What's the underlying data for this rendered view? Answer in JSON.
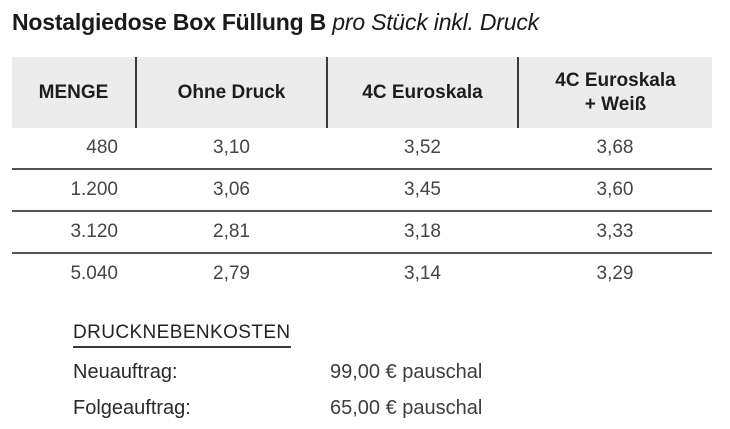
{
  "title": {
    "main": "Nostalgiedose Box Füllung B",
    "suffix": "pro Stück inkl. Druck"
  },
  "table": {
    "columns": [
      "MENGE",
      "Ohne Druck",
      "4C Euroskala",
      "4C Euroskala\n+ Weiß"
    ],
    "rows": [
      [
        "480",
        "3,10",
        "3,52",
        "3,68"
      ],
      [
        "1.200",
        "3,06",
        "3,45",
        "3,60"
      ],
      [
        "3.120",
        "2,81",
        "3,18",
        "3,33"
      ],
      [
        "5.040",
        "2,79",
        "3,14",
        "3,29"
      ]
    ]
  },
  "extras": {
    "heading": "DRUCKNEBENKOSTEN",
    "items": [
      {
        "label": "Neuauftrag:",
        "value": "99,00 € pauschal"
      },
      {
        "label": "Folgeauftrag:",
        "value": "65,00 € pauschal"
      }
    ]
  },
  "colors": {
    "header_background": "#ececec",
    "divider_line": "#3a3a3a",
    "row_separator": "#555555",
    "text_primary": "#1a1a1a",
    "text_values": "#454545"
  }
}
